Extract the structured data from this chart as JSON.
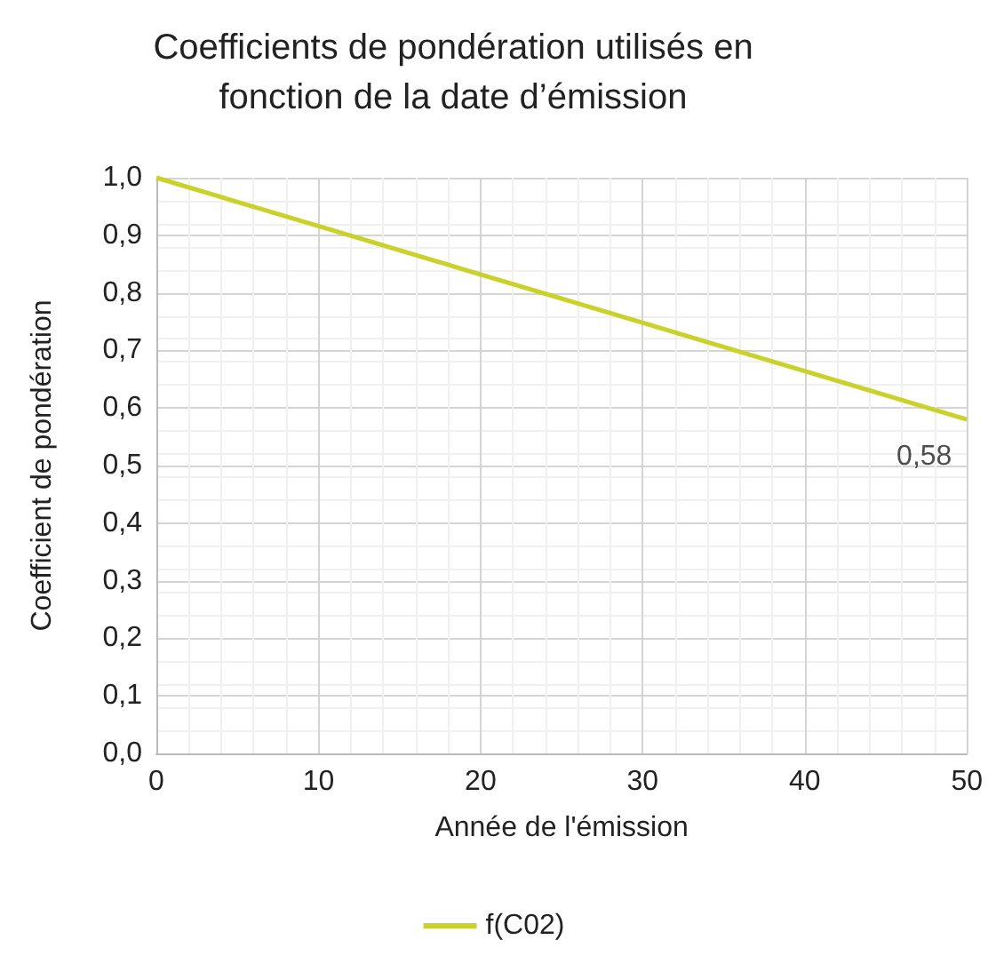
{
  "chart_data": {
    "type": "line",
    "title": "Coefficients de pondération utilisés en\nfonction de la date d’émission",
    "xlabel": "Année de l'émission",
    "ylabel": "Coefficient de pondération",
    "x": [
      0,
      50
    ],
    "series": [
      {
        "name": "f(C02)",
        "color": "#c9d12b",
        "values": [
          1.0,
          0.58
        ]
      }
    ],
    "xlim": [
      0,
      50
    ],
    "xticks": [
      0,
      10,
      20,
      30,
      40,
      50
    ],
    "ylim": [
      0,
      1
    ],
    "yticks": [
      {
        "value": 0,
        "label": "0,0"
      },
      {
        "value": 0.1,
        "label": "0,1"
      },
      {
        "value": 0.2,
        "label": "0,2"
      },
      {
        "value": 0.3,
        "label": "0,3"
      },
      {
        "value": 0.4,
        "label": "0,4"
      },
      {
        "value": 0.5,
        "label": "0,5"
      },
      {
        "value": 0.6,
        "label": "0,6"
      },
      {
        "value": 0.7,
        "label": "0,7"
      },
      {
        "value": 0.8,
        "label": "0,8"
      },
      {
        "value": 0.9,
        "label": "0,9"
      },
      {
        "value": 1,
        "label": "1,0"
      }
    ],
    "annotations": [
      {
        "text": "0,58",
        "x": 50,
        "y": 0.58
      }
    ],
    "grid": true,
    "legend": "bottom",
    "marker": "none",
    "line_style": "solid"
  }
}
